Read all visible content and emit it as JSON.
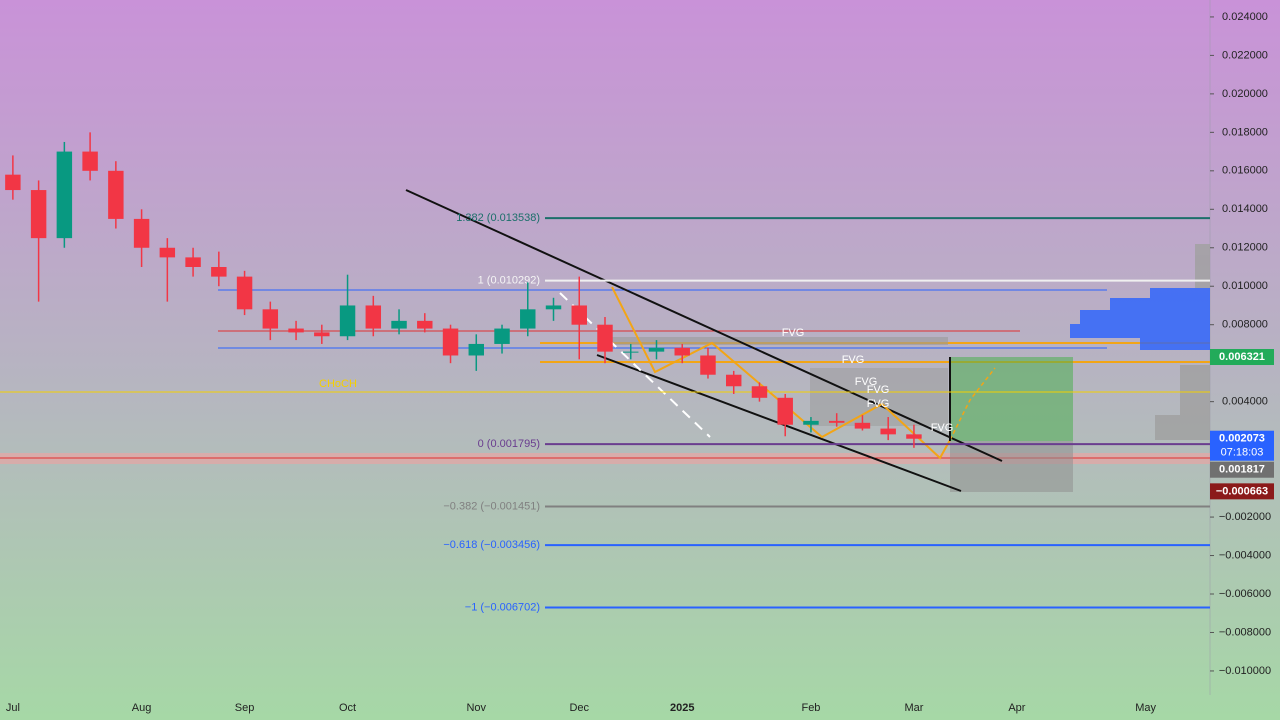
{
  "chart_data": {
    "type": "candlestick",
    "categories": [
      "Jul",
      null,
      null,
      null,
      null,
      "Aug",
      null,
      null,
      null,
      "Sep",
      null,
      null,
      null,
      "Oct",
      null,
      null,
      null,
      null,
      "Nov",
      null,
      null,
      null,
      "Dec",
      null,
      null,
      null,
      "2025",
      null,
      null,
      null,
      null,
      "Feb",
      null,
      null,
      null,
      "Mar",
      null,
      null,
      null,
      "Apr",
      null,
      null,
      null,
      null,
      "May",
      null,
      null
    ],
    "open": [
      0.0158,
      0.015,
      0.0125,
      0.017,
      0.016,
      0.0135,
      0.012,
      0.0115,
      0.011,
      0.0105,
      0.0088,
      0.0078,
      0.0076,
      0.0074,
      0.009,
      0.0078,
      0.0082,
      0.0078,
      0.0064,
      0.007,
      0.0078,
      0.0088,
      0.009,
      0.008,
      0.0066,
      0.0066,
      0.0068,
      0.0064,
      0.0054,
      0.0048,
      0.0042,
      0.0028,
      0.003,
      0.0029,
      0.0026,
      0.0023,
      null,
      null,
      null,
      null,
      null,
      null,
      null,
      null,
      null,
      null,
      null
    ],
    "high": [
      0.0168,
      0.0155,
      0.0175,
      0.018,
      0.0165,
      0.014,
      0.0125,
      0.012,
      0.0118,
      0.0108,
      0.0092,
      0.0082,
      0.008,
      0.0106,
      0.0095,
      0.0088,
      0.0086,
      0.008,
      0.0075,
      0.008,
      0.0102,
      0.0094,
      0.0105,
      0.0084,
      0.007,
      0.0072,
      0.007,
      0.0068,
      0.0056,
      0.005,
      0.0044,
      0.0032,
      0.0034,
      0.0033,
      0.0032,
      0.0028,
      null,
      null,
      null,
      null,
      null,
      null,
      null,
      null,
      null,
      null,
      null
    ],
    "low": [
      0.0145,
      0.0092,
      0.012,
      0.0155,
      0.013,
      0.011,
      0.0092,
      0.0105,
      0.01,
      0.0085,
      0.0072,
      0.0072,
      0.007,
      0.0072,
      0.0074,
      0.0075,
      0.0076,
      0.006,
      0.0056,
      0.0065,
      0.0074,
      0.0082,
      0.0062,
      0.006,
      0.0062,
      0.0062,
      0.006,
      0.0052,
      0.0044,
      0.004,
      0.0022,
      0.0024,
      0.0027,
      0.0025,
      0.002,
      0.0016,
      null,
      null,
      null,
      null,
      null,
      null,
      null,
      null,
      null,
      null,
      null
    ],
    "close": [
      0.015,
      0.0125,
      0.017,
      0.016,
      0.0135,
      0.012,
      0.0115,
      0.011,
      0.0105,
      0.0088,
      0.0078,
      0.0076,
      0.0074,
      0.009,
      0.0078,
      0.0082,
      0.0078,
      0.0064,
      0.007,
      0.0078,
      0.0088,
      0.009,
      0.008,
      0.0066,
      0.0066,
      0.0068,
      0.0064,
      0.0054,
      0.0048,
      0.0042,
      0.0028,
      0.003,
      0.0029,
      0.0026,
      0.0023,
      0.002073,
      null,
      null,
      null,
      null,
      null,
      null,
      null,
      null,
      null,
      null,
      null
    ],
    "up_color": "#089981",
    "down_color": "#f23645",
    "ylim": [
      -0.01125,
      0.02488
    ],
    "yticks": [
      {
        "value": 0.024,
        "label": "0.024000"
      },
      {
        "value": 0.022,
        "label": "0.022000"
      },
      {
        "value": 0.02,
        "label": "0.020000"
      },
      {
        "value": 0.018,
        "label": "0.018000"
      },
      {
        "value": 0.016,
        "label": "0.016000"
      },
      {
        "value": 0.014,
        "label": "0.014000"
      },
      {
        "value": 0.012,
        "label": "0.012000"
      },
      {
        "value": 0.01,
        "label": "0.010000"
      },
      {
        "value": 0.008,
        "label": "0.008000"
      },
      {
        "value": 0.004,
        "label": "0.004000"
      },
      {
        "value": -0.002,
        "label": "−0.002000"
      },
      {
        "value": -0.004,
        "label": "−0.004000"
      },
      {
        "value": -0.006,
        "label": "−0.006000"
      },
      {
        "value": -0.008,
        "label": "−0.008000"
      },
      {
        "value": -0.01,
        "label": "−0.010000"
      }
    ],
    "levels": [
      {
        "label": "1.382 (0.013538)",
        "value": 0.013538,
        "color": "#1b6f6a"
      },
      {
        "label": "1 (0.010292)",
        "value": 0.010292,
        "color": "#f0f0f0"
      },
      {
        "label": "0 (0.001795)",
        "value": 0.001795,
        "color": "#6a3d8f"
      },
      {
        "label": "−0.382 (−0.001451)",
        "value": -0.001451,
        "color": "#808080"
      },
      {
        "label": "−0.618 (−0.003456)",
        "value": -0.003456,
        "color": "#2962ff"
      },
      {
        "label": "−1 (−0.006702)",
        "value": -0.006702,
        "color": "#2962ff"
      }
    ],
    "choch": {
      "label": "CHoCH",
      "value": 0.0045,
      "color": "#f5d000"
    },
    "fvg_labels": [
      "FVG",
      "FVG",
      "FVG",
      "FVG",
      "FVG",
      "FVG"
    ],
    "price_labels": [
      {
        "text": "0.006321",
        "value": 0.006321,
        "color": "#22ab5a"
      },
      {
        "text": "0.002073",
        "value": 0.002073,
        "color": "#2962ff"
      },
      {
        "text": "0.001817",
        "value": 0.001817,
        "color": "#707070"
      },
      {
        "text": "−0.000663",
        "value": -0.000663,
        "color": "#8b1a1a"
      }
    ],
    "countdown": "07:18:03"
  }
}
